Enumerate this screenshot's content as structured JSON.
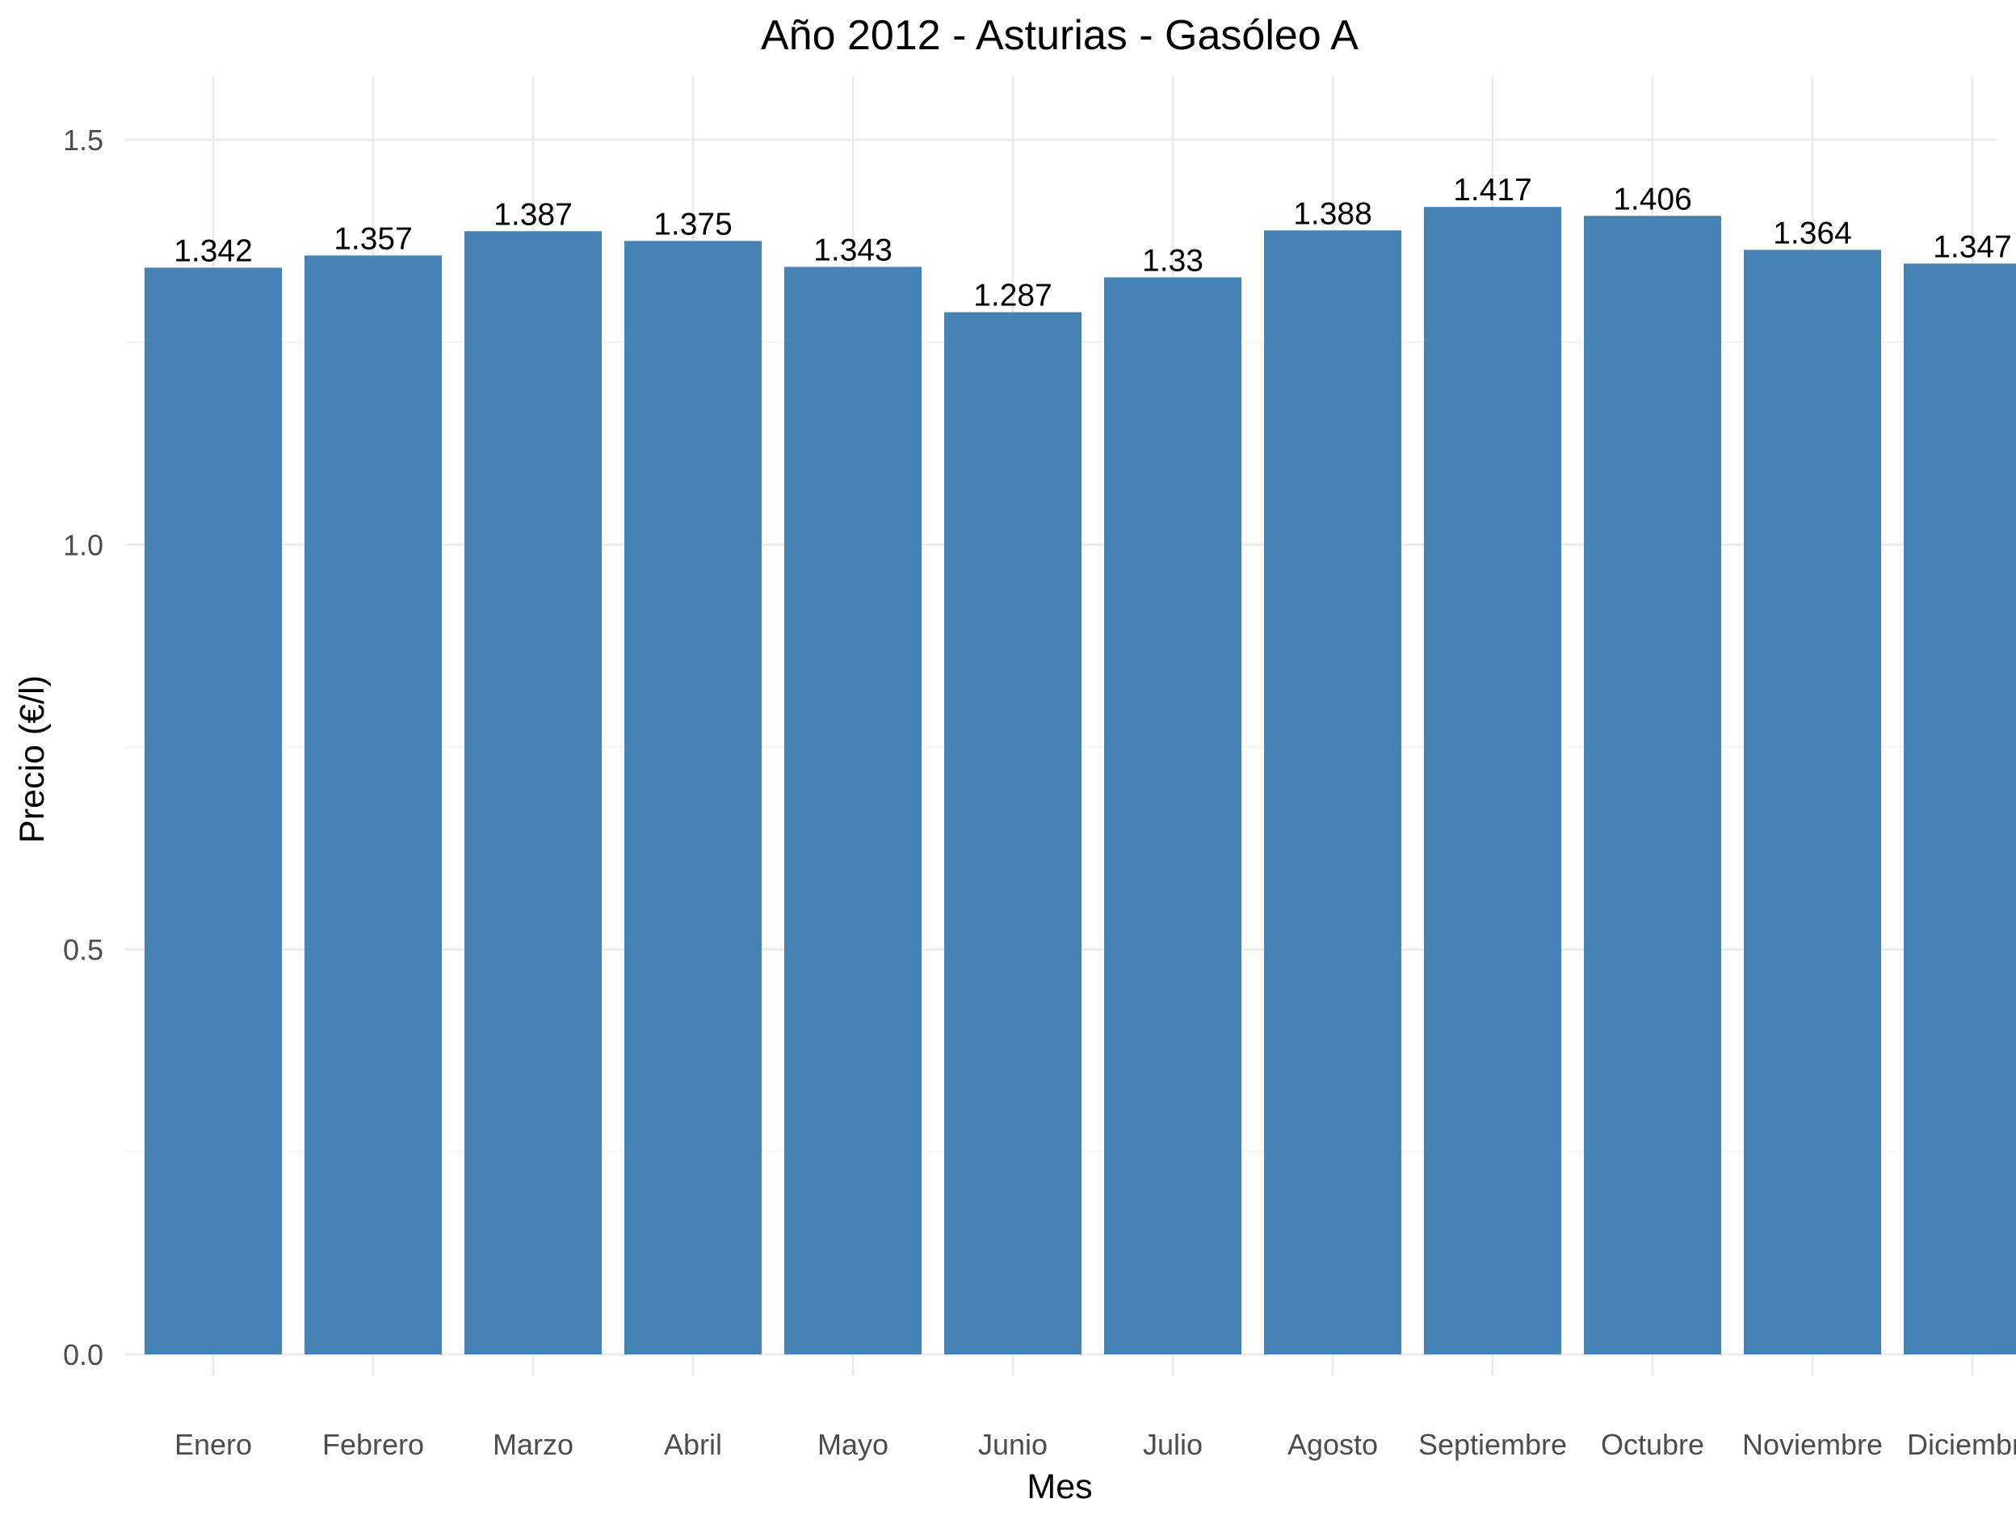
{
  "chart_data": {
    "type": "bar",
    "title": "Año 2012 - Asturias - Gasóleo A",
    "xlabel": "Mes",
    "ylabel": "Precio (€/l)",
    "categories": [
      "Enero",
      "Febrero",
      "Marzo",
      "Abril",
      "Mayo",
      "Junio",
      "Julio",
      "Agosto",
      "Septiembre",
      "Octubre",
      "Noviembre",
      "Diciembre"
    ],
    "values": [
      1.342,
      1.357,
      1.387,
      1.375,
      1.343,
      1.287,
      1.33,
      1.388,
      1.417,
      1.406,
      1.364,
      1.347
    ],
    "value_labels": [
      "1.342",
      "1.357",
      "1.387",
      "1.375",
      "1.343",
      "1.287",
      "1.33",
      "1.388",
      "1.417",
      "1.406",
      "1.364",
      "1.347"
    ],
    "ylim": [
      0,
      1.5
    ],
    "yticks": [
      0.0,
      0.5,
      1.0,
      1.5
    ],
    "ytick_labels": [
      "0.0",
      "0.5",
      "1.0",
      "1.5"
    ],
    "grid": true,
    "legend": "none",
    "bar_color": "#4682b4"
  }
}
